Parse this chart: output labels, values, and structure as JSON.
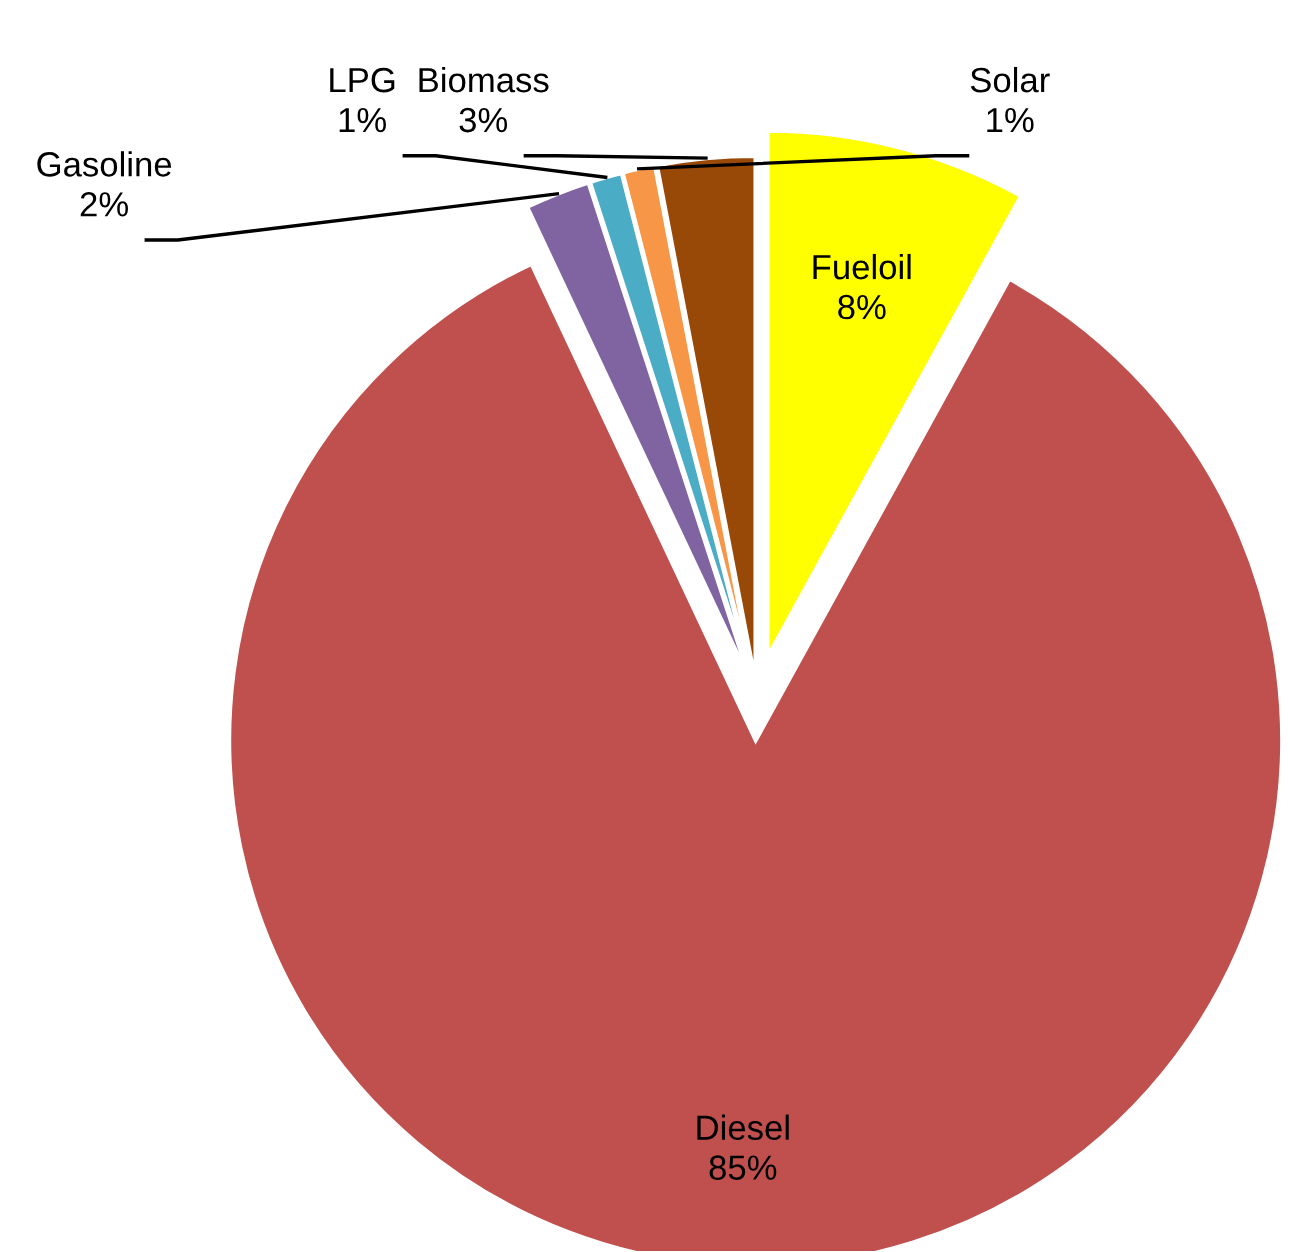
{
  "chart_data": {
    "type": "pie",
    "categories": [
      "Fueloil",
      "Diesel",
      "Gasoline",
      "LPG",
      "Solar",
      "Biomass"
    ],
    "values": [
      8,
      85,
      2,
      1,
      1,
      3
    ],
    "colors": [
      "#ffff00",
      "#c0504d",
      "#8064a2",
      "#4bacc6",
      "#f79646",
      "#984807"
    ],
    "value_labels": [
      "8%",
      "85%",
      "2%",
      "1%",
      "1%",
      "3%"
    ],
    "legend": false
  }
}
